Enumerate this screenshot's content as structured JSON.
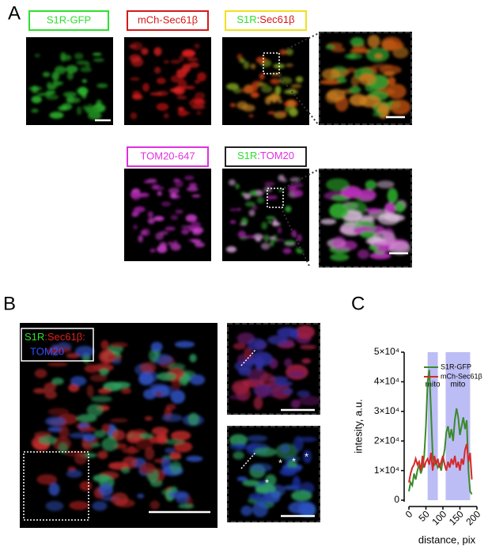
{
  "panel_labels": {
    "a": "A",
    "b": "B",
    "c": "C"
  },
  "image_labels": {
    "s1r_gfp": "S1R-GFP",
    "mch_sec61b": "mCh-Sec61β",
    "s1r_sec61b": [
      "S1R",
      ":",
      "Sec61β"
    ],
    "tom20_647": "TOM20-647",
    "s1r_tom20": [
      "S1R",
      ":",
      "TOM20"
    ],
    "merge_b": [
      "S1R",
      ":",
      "Sec61β",
      ":",
      "TOM20"
    ],
    "asterisk": "*"
  },
  "chart_data": {
    "type": "line",
    "x_label": "distance, pix",
    "y_label": "intesity, a.u.",
    "x": [
      0,
      5,
      10,
      15,
      20,
      25,
      30,
      35,
      40,
      45,
      50,
      55,
      60,
      65,
      70,
      75,
      80,
      85,
      90,
      95,
      100,
      105,
      110,
      115,
      120,
      125,
      130,
      135,
      140,
      145,
      150,
      155,
      160,
      165,
      170,
      175,
      180,
      185
    ],
    "series": [
      {
        "name": "S1R-GFP",
        "color": "#3a8a2a",
        "values": [
          3000,
          6000,
          5000,
          9000,
          7000,
          10000,
          12000,
          9000,
          11000,
          15000,
          25000,
          40000,
          44000,
          30000,
          15000,
          12000,
          13000,
          11000,
          12000,
          10000,
          14000,
          17000,
          23000,
          25000,
          21000,
          24000,
          20000,
          27000,
          31000,
          28000,
          22000,
          25000,
          28000,
          24000,
          27000,
          10000,
          3000,
          2000
        ]
      },
      {
        "name": "mCh-Sec61β",
        "color": "#d42a2a",
        "values": [
          6000,
          9000,
          11000,
          12000,
          14000,
          12000,
          13000,
          10000,
          15000,
          11000,
          13000,
          14000,
          12000,
          16000,
          10000,
          15000,
          12000,
          14000,
          11000,
          13000,
          15000,
          12000,
          10000,
          13000,
          11000,
          14000,
          12000,
          15000,
          11000,
          13000,
          10000,
          14000,
          12000,
          17000,
          19000,
          13000,
          16000,
          7000
        ]
      }
    ],
    "annotations": [
      {
        "text": "mito",
        "x": [
          55,
          85
        ]
      },
      {
        "text": "mito",
        "x": [
          108,
          180
        ]
      }
    ],
    "annotation_color": "#bdbdf5",
    "xlim": [
      0,
      200
    ],
    "xticks": [
      0,
      50,
      100,
      150,
      200
    ],
    "ylim": [
      0,
      50000
    ],
    "yticks": [
      0,
      {
        "value": 10000,
        "label": "1×10⁴"
      },
      {
        "value": 20000,
        "label": "2×10⁴"
      },
      {
        "value": 30000,
        "label": "3×10⁴"
      },
      {
        "value": 40000,
        "label": "4×10⁴"
      },
      {
        "value": 50000,
        "label": "5×10⁴"
      }
    ],
    "legend": "upper right"
  }
}
